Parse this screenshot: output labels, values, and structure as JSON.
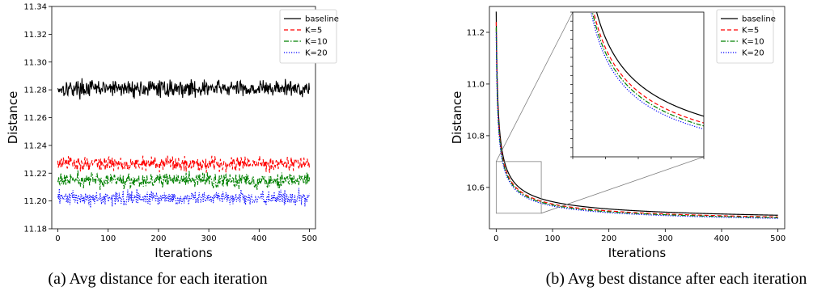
{
  "chart_data": [
    {
      "type": "line",
      "caption": "(a) Avg distance for each iteration",
      "xlabel": "Iterations",
      "ylabel": "Distance",
      "xlim": [
        -12,
        512
      ],
      "ylim": [
        11.18,
        11.34
      ],
      "xticks": [
        0,
        100,
        200,
        300,
        400,
        500
      ],
      "yticks": [
        11.18,
        11.2,
        11.22,
        11.24,
        11.26,
        11.28,
        11.3,
        11.32,
        11.34
      ],
      "ytick_labels": [
        "11.18",
        "11.20",
        "11.22",
        "11.24",
        "11.26",
        "11.28",
        "11.30",
        "11.32",
        "11.34"
      ],
      "legend": "top-right",
      "grid": false,
      "series": [
        {
          "name": "baseline",
          "color": "#000000",
          "style": "solid",
          "mean": 11.281,
          "noise": 0.0045,
          "x_range": [
            0,
            500
          ]
        },
        {
          "name": "K=5",
          "color": "#ff0000",
          "style": "dashed",
          "mean": 11.227,
          "noise": 0.004,
          "x_range": [
            0,
            500
          ]
        },
        {
          "name": "K=10",
          "color": "#008000",
          "style": "dashdot",
          "mean": 11.215,
          "noise": 0.004,
          "x_range": [
            0,
            500
          ]
        },
        {
          "name": "K=20",
          "color": "#0000ff",
          "style": "dotted",
          "mean": 11.202,
          "noise": 0.004,
          "x_range": [
            0,
            500
          ]
        }
      ]
    },
    {
      "type": "line",
      "caption": "(b) Avg best distance after each iteration",
      "xlabel": "Iterations",
      "ylabel": "Distance",
      "xlim": [
        -12,
        512
      ],
      "ylim": [
        10.44,
        11.3
      ],
      "xticks": [
        0,
        100,
        200,
        300,
        400,
        500
      ],
      "yticks": [
        10.6,
        10.8,
        11.0,
        11.2
      ],
      "ytick_labels": [
        "10.6",
        "10.8",
        "11.0",
        "11.2"
      ],
      "legend": "top-right",
      "grid": false,
      "inset": {
        "x_range": [
          0,
          80
        ],
        "y_range": [
          10.5,
          10.7
        ]
      },
      "series": [
        {
          "name": "baseline",
          "color": "#000000",
          "style": "solid",
          "start": 11.28,
          "end": 10.455,
          "x_range": [
            0,
            500
          ]
        },
        {
          "name": "K=5",
          "color": "#ff0000",
          "style": "dashed",
          "start": 11.24,
          "end": 10.45,
          "x_range": [
            0,
            500
          ]
        },
        {
          "name": "K=10",
          "color": "#008000",
          "style": "dashdot",
          "start": 11.22,
          "end": 10.448,
          "x_range": [
            0,
            500
          ]
        },
        {
          "name": "K=20",
          "color": "#0000ff",
          "style": "dotted",
          "start": 11.2,
          "end": 10.446,
          "x_range": [
            0,
            500
          ]
        }
      ]
    }
  ]
}
